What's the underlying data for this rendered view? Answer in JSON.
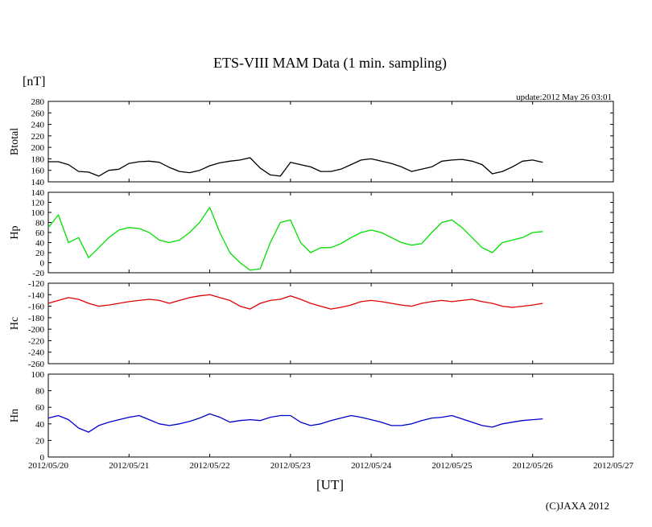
{
  "title": "ETS-VIII MAM Data (1 min. sampling)",
  "unit_label": "[nT]",
  "update_text": "update:2012 May 26 03:01",
  "xlabel": "[UT]",
  "copyright": "(C)JAXA 2012",
  "x_ticks": [
    "2012/05/20",
    "2012/05/21",
    "2012/05/22",
    "2012/05/23",
    "2012/05/24",
    "2012/05/25",
    "2012/05/26",
    "2012/05/27"
  ],
  "chart_data": [
    {
      "type": "line",
      "name": "Btotal",
      "ylabel": "Btotal",
      "color": "#000000",
      "ylim": [
        140,
        280
      ],
      "yticks": [
        "140",
        "160",
        "180",
        "200",
        "220",
        "240",
        "260",
        "280"
      ],
      "x": [
        "2012-05-20 00:00",
        "2012-05-20 03:00",
        "2012-05-20 06:00",
        "2012-05-20 09:00",
        "2012-05-20 12:00",
        "2012-05-20 15:00",
        "2012-05-20 18:00",
        "2012-05-20 21:00",
        "2012-05-21 00:00",
        "2012-05-21 03:00",
        "2012-05-21 06:00",
        "2012-05-21 09:00",
        "2012-05-21 12:00",
        "2012-05-21 15:00",
        "2012-05-21 18:00",
        "2012-05-21 21:00",
        "2012-05-22 00:00",
        "2012-05-22 03:00",
        "2012-05-22 06:00",
        "2012-05-22 09:00",
        "2012-05-22 12:00",
        "2012-05-22 15:00",
        "2012-05-22 18:00",
        "2012-05-22 21:00",
        "2012-05-23 00:00",
        "2012-05-23 03:00",
        "2012-05-23 06:00",
        "2012-05-23 09:00",
        "2012-05-23 12:00",
        "2012-05-23 15:00",
        "2012-05-23 18:00",
        "2012-05-23 21:00",
        "2012-05-24 00:00",
        "2012-05-24 03:00",
        "2012-05-24 06:00",
        "2012-05-24 09:00",
        "2012-05-24 12:00",
        "2012-05-24 15:00",
        "2012-05-24 18:00",
        "2012-05-24 21:00",
        "2012-05-25 00:00",
        "2012-05-25 03:00",
        "2012-05-25 06:00",
        "2012-05-25 09:00",
        "2012-05-25 12:00",
        "2012-05-25 15:00",
        "2012-05-25 18:00",
        "2012-05-25 21:00",
        "2012-05-26 00:00",
        "2012-05-26 03:00"
      ],
      "values": [
        175,
        175,
        170,
        158,
        157,
        150,
        160,
        162,
        172,
        175,
        176,
        174,
        165,
        158,
        156,
        160,
        168,
        173,
        176,
        178,
        182,
        164,
        152,
        150,
        174,
        170,
        166,
        158,
        158,
        162,
        170,
        178,
        180,
        176,
        172,
        166,
        158,
        162,
        166,
        176,
        178,
        179,
        176,
        170,
        154,
        158,
        166,
        176,
        178,
        174
      ]
    },
    {
      "type": "line",
      "name": "Hp",
      "ylabel": "Hp",
      "color": "#00e000",
      "ylim": [
        -20,
        140
      ],
      "yticks": [
        "-20",
        "0",
        "20",
        "40",
        "60",
        "80",
        "100",
        "120",
        "140"
      ],
      "x": [
        "2012-05-20 00:00",
        "2012-05-20 03:00",
        "2012-05-20 06:00",
        "2012-05-20 09:00",
        "2012-05-20 12:00",
        "2012-05-20 15:00",
        "2012-05-20 18:00",
        "2012-05-20 21:00",
        "2012-05-21 00:00",
        "2012-05-21 03:00",
        "2012-05-21 06:00",
        "2012-05-21 09:00",
        "2012-05-21 12:00",
        "2012-05-21 15:00",
        "2012-05-21 18:00",
        "2012-05-21 21:00",
        "2012-05-22 00:00",
        "2012-05-22 03:00",
        "2012-05-22 06:00",
        "2012-05-22 09:00",
        "2012-05-22 12:00",
        "2012-05-22 15:00",
        "2012-05-22 18:00",
        "2012-05-22 21:00",
        "2012-05-23 00:00",
        "2012-05-23 03:00",
        "2012-05-23 06:00",
        "2012-05-23 09:00",
        "2012-05-23 12:00",
        "2012-05-23 15:00",
        "2012-05-23 18:00",
        "2012-05-23 21:00",
        "2012-05-24 00:00",
        "2012-05-24 03:00",
        "2012-05-24 06:00",
        "2012-05-24 09:00",
        "2012-05-24 12:00",
        "2012-05-24 15:00",
        "2012-05-24 18:00",
        "2012-05-24 21:00",
        "2012-05-25 00:00",
        "2012-05-25 03:00",
        "2012-05-25 06:00",
        "2012-05-25 09:00",
        "2012-05-25 12:00",
        "2012-05-25 15:00",
        "2012-05-25 18:00",
        "2012-05-25 21:00",
        "2012-05-26 00:00",
        "2012-05-26 03:00"
      ],
      "values": [
        70,
        95,
        40,
        50,
        10,
        30,
        50,
        65,
        70,
        68,
        60,
        45,
        40,
        45,
        60,
        80,
        110,
        60,
        20,
        0,
        -15,
        -12,
        40,
        80,
        85,
        40,
        20,
        30,
        30,
        38,
        50,
        60,
        65,
        60,
        50,
        40,
        35,
        38,
        60,
        80,
        85,
        70,
        50,
        30,
        20,
        40,
        45,
        50,
        60,
        62
      ]
    },
    {
      "type": "line",
      "name": "Hc",
      "ylabel": "Hc",
      "color": "#e00000",
      "ylim": [
        -260,
        -120
      ],
      "yticks": [
        "-260",
        "-240",
        "-220",
        "-200",
        "-180",
        "-160",
        "-140",
        "-120"
      ],
      "x": [
        "2012-05-20 00:00",
        "2012-05-20 03:00",
        "2012-05-20 06:00",
        "2012-05-20 09:00",
        "2012-05-20 12:00",
        "2012-05-20 15:00",
        "2012-05-20 18:00",
        "2012-05-20 21:00",
        "2012-05-21 00:00",
        "2012-05-21 03:00",
        "2012-05-21 06:00",
        "2012-05-21 09:00",
        "2012-05-21 12:00",
        "2012-05-21 15:00",
        "2012-05-21 18:00",
        "2012-05-21 21:00",
        "2012-05-22 00:00",
        "2012-05-22 03:00",
        "2012-05-22 06:00",
        "2012-05-22 09:00",
        "2012-05-22 12:00",
        "2012-05-22 15:00",
        "2012-05-22 18:00",
        "2012-05-22 21:00",
        "2012-05-23 00:00",
        "2012-05-23 03:00",
        "2012-05-23 06:00",
        "2012-05-23 09:00",
        "2012-05-23 12:00",
        "2012-05-23 15:00",
        "2012-05-23 18:00",
        "2012-05-23 21:00",
        "2012-05-24 00:00",
        "2012-05-24 03:00",
        "2012-05-24 06:00",
        "2012-05-24 09:00",
        "2012-05-24 12:00",
        "2012-05-24 15:00",
        "2012-05-24 18:00",
        "2012-05-24 21:00",
        "2012-05-25 00:00",
        "2012-05-25 03:00",
        "2012-05-25 06:00",
        "2012-05-25 09:00",
        "2012-05-25 12:00",
        "2012-05-25 15:00",
        "2012-05-25 18:00",
        "2012-05-25 21:00",
        "2012-05-26 00:00",
        "2012-05-26 03:00"
      ],
      "values": [
        -155,
        -150,
        -145,
        -148,
        -155,
        -160,
        -158,
        -155,
        -152,
        -150,
        -148,
        -150,
        -155,
        -150,
        -145,
        -142,
        -140,
        -145,
        -150,
        -160,
        -165,
        -155,
        -150,
        -148,
        -142,
        -148,
        -155,
        -160,
        -165,
        -162,
        -158,
        -152,
        -150,
        -152,
        -155,
        -158,
        -160,
        -155,
        -152,
        -150,
        -152,
        -150,
        -148,
        -152,
        -155,
        -160,
        -162,
        -160,
        -158,
        -155
      ]
    },
    {
      "type": "line",
      "name": "Hn",
      "ylabel": "Hn",
      "color": "#0000cc",
      "ylim": [
        0,
        100
      ],
      "yticks": [
        "0",
        "20",
        "40",
        "60",
        "80",
        "100"
      ],
      "x": [
        "2012-05-20 00:00",
        "2012-05-20 03:00",
        "2012-05-20 06:00",
        "2012-05-20 09:00",
        "2012-05-20 12:00",
        "2012-05-20 15:00",
        "2012-05-20 18:00",
        "2012-05-20 21:00",
        "2012-05-21 00:00",
        "2012-05-21 03:00",
        "2012-05-21 06:00",
        "2012-05-21 09:00",
        "2012-05-21 12:00",
        "2012-05-21 15:00",
        "2012-05-21 18:00",
        "2012-05-21 21:00",
        "2012-05-22 00:00",
        "2012-05-22 03:00",
        "2012-05-22 06:00",
        "2012-05-22 09:00",
        "2012-05-22 12:00",
        "2012-05-22 15:00",
        "2012-05-22 18:00",
        "2012-05-22 21:00",
        "2012-05-23 00:00",
        "2012-05-23 03:00",
        "2012-05-23 06:00",
        "2012-05-23 09:00",
        "2012-05-23 12:00",
        "2012-05-23 15:00",
        "2012-05-23 18:00",
        "2012-05-23 21:00",
        "2012-05-24 00:00",
        "2012-05-24 03:00",
        "2012-05-24 06:00",
        "2012-05-24 09:00",
        "2012-05-24 12:00",
        "2012-05-24 15:00",
        "2012-05-24 18:00",
        "2012-05-24 21:00",
        "2012-05-25 00:00",
        "2012-05-25 03:00",
        "2012-05-25 06:00",
        "2012-05-25 09:00",
        "2012-05-25 12:00",
        "2012-05-25 15:00",
        "2012-05-25 18:00",
        "2012-05-25 21:00",
        "2012-05-26 00:00",
        "2012-05-26 03:00"
      ],
      "values": [
        47,
        50,
        45,
        35,
        30,
        38,
        42,
        45,
        48,
        50,
        45,
        40,
        38,
        40,
        43,
        47,
        52,
        48,
        42,
        44,
        45,
        44,
        48,
        50,
        50,
        42,
        38,
        40,
        44,
        47,
        50,
        48,
        45,
        42,
        38,
        38,
        40,
        44,
        47,
        48,
        50,
        46,
        42,
        38,
        36,
        40,
        42,
        44,
        45,
        46
      ]
    }
  ]
}
